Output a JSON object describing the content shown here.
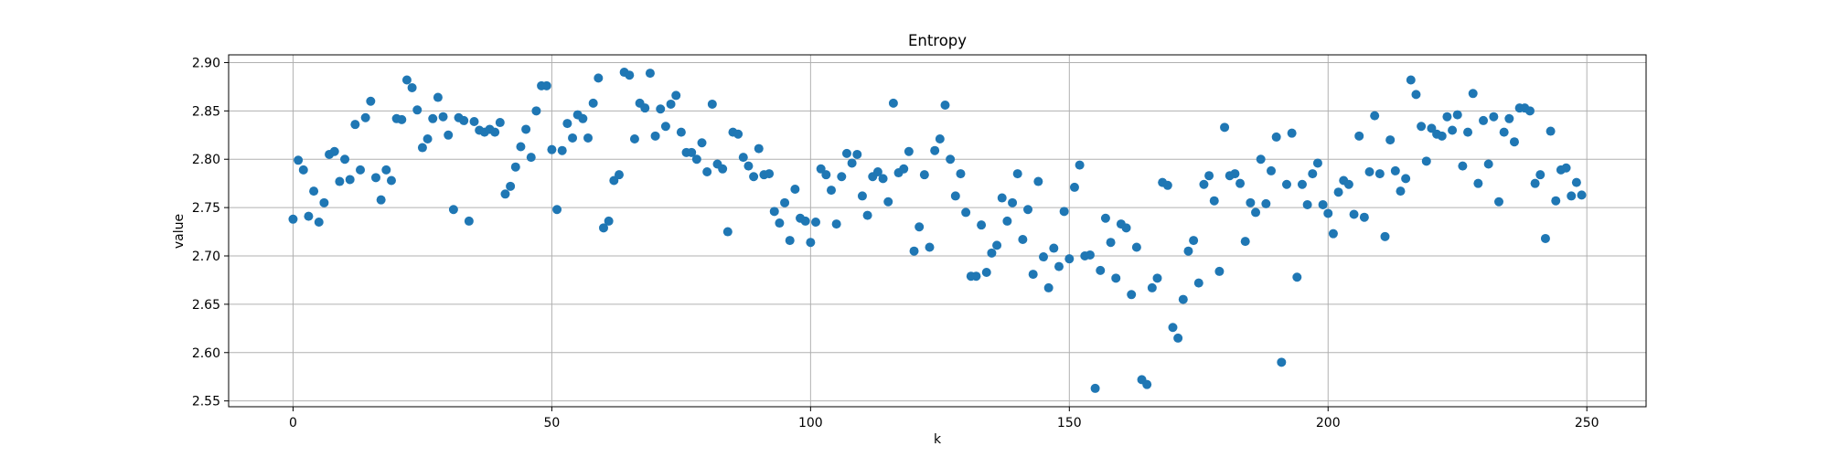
{
  "chart_data": {
    "type": "scatter",
    "title": "Entropy",
    "xlabel": "k",
    "ylabel": "value",
    "xlim": [
      -12.45,
      261.45
    ],
    "ylim": [
      2.544,
      2.908
    ],
    "xticks": [
      0,
      50,
      100,
      150,
      200,
      250
    ],
    "yticks": [
      2.55,
      2.6,
      2.65,
      2.7,
      2.75,
      2.8,
      2.85,
      2.9
    ],
    "ytick_labels": [
      "2.55",
      "2.60",
      "2.65",
      "2.70",
      "2.75",
      "2.80",
      "2.85",
      "2.90"
    ],
    "grid": true,
    "marker_color": "#1f77b4",
    "x": [
      0,
      1,
      2,
      3,
      4,
      5,
      6,
      7,
      8,
      9,
      10,
      11,
      12,
      13,
      14,
      15,
      16,
      17,
      18,
      19,
      20,
      21,
      22,
      23,
      24,
      25,
      26,
      27,
      28,
      29,
      30,
      31,
      32,
      33,
      34,
      35,
      36,
      37,
      38,
      39,
      40,
      41,
      42,
      43,
      44,
      45,
      46,
      47,
      48,
      49,
      50,
      51,
      52,
      53,
      54,
      55,
      56,
      57,
      58,
      59,
      60,
      61,
      62,
      63,
      64,
      65,
      66,
      67,
      68,
      69,
      70,
      71,
      72,
      73,
      74,
      75,
      76,
      77,
      78,
      79,
      80,
      81,
      82,
      83,
      84,
      85,
      86,
      87,
      88,
      89,
      90,
      91,
      92,
      93,
      94,
      95,
      96,
      97,
      98,
      99,
      100,
      101,
      102,
      103,
      104,
      105,
      106,
      107,
      108,
      109,
      110,
      111,
      112,
      113,
      114,
      115,
      116,
      117,
      118,
      119,
      120,
      121,
      122,
      123,
      124,
      125,
      126,
      127,
      128,
      129,
      130,
      131,
      132,
      133,
      134,
      135,
      136,
      137,
      138,
      139,
      140,
      141,
      142,
      143,
      144,
      145,
      146,
      147,
      148,
      149,
      150,
      151,
      152,
      153,
      154,
      155,
      156,
      157,
      158,
      159,
      160,
      161,
      162,
      163,
      164,
      165,
      166,
      167,
      168,
      169,
      170,
      171,
      172,
      173,
      174,
      175,
      176,
      177,
      178,
      179,
      180,
      181,
      182,
      183,
      184,
      185,
      186,
      187,
      188,
      189,
      190,
      191,
      192,
      193,
      194,
      195,
      196,
      197,
      198,
      199,
      200,
      201,
      202,
      203,
      204,
      205,
      206,
      207,
      208,
      209,
      210,
      211,
      212,
      213,
      214,
      215,
      216,
      217,
      218,
      219,
      220,
      221,
      222,
      223,
      224,
      225,
      226,
      227,
      228,
      229,
      230,
      231,
      232,
      233,
      234,
      235,
      236,
      237,
      238,
      239,
      240,
      241,
      242,
      243,
      244,
      245,
      246,
      247,
      248,
      249
    ],
    "y": [
      2.738,
      2.799,
      2.789,
      2.741,
      2.767,
      2.735,
      2.755,
      2.805,
      2.808,
      2.777,
      2.8,
      2.779,
      2.836,
      2.789,
      2.843,
      2.86,
      2.781,
      2.758,
      2.789,
      2.778,
      2.842,
      2.841,
      2.882,
      2.874,
      2.851,
      2.812,
      2.821,
      2.842,
      2.864,
      2.844,
      2.825,
      2.748,
      2.843,
      2.84,
      2.736,
      2.839,
      2.83,
      2.828,
      2.831,
      2.828,
      2.838,
      2.764,
      2.772,
      2.792,
      2.813,
      2.831,
      2.802,
      2.85,
      2.876,
      2.876,
      2.81,
      2.748,
      2.809,
      2.837,
      2.822,
      2.846,
      2.842,
      2.822,
      2.858,
      2.884,
      2.729,
      2.736,
      2.778,
      2.784,
      2.89,
      2.887,
      2.821,
      2.858,
      2.853,
      2.889,
      2.824,
      2.852,
      2.834,
      2.857,
      2.866,
      2.828,
      2.807,
      2.807,
      2.8,
      2.817,
      2.787,
      2.857,
      2.795,
      2.79,
      2.725,
      2.828,
      2.826,
      2.802,
      2.793,
      2.782,
      2.811,
      2.784,
      2.785,
      2.746,
      2.734,
      2.755,
      2.716,
      2.769,
      2.739,
      2.736,
      2.714,
      2.735,
      2.79,
      2.784,
      2.768,
      2.733,
      2.782,
      2.806,
      2.796,
      2.805,
      2.762,
      2.742,
      2.782,
      2.787,
      2.78,
      2.756,
      2.858,
      2.786,
      2.79,
      2.808,
      2.705,
      2.73,
      2.784,
      2.709,
      2.809,
      2.821,
      2.856,
      2.8,
      2.762,
      2.785,
      2.745,
      2.679,
      2.679,
      2.732,
      2.683,
      2.703,
      2.711,
      2.76,
      2.736,
      2.755,
      2.785,
      2.717,
      2.748,
      2.681,
      2.777,
      2.699,
      2.667,
      2.708,
      2.689,
      2.746,
      2.697,
      2.771,
      2.794,
      2.7,
      2.701,
      2.563,
      2.685,
      2.739,
      2.714,
      2.677,
      2.733,
      2.729,
      2.66,
      2.709,
      2.572,
      2.567,
      2.667,
      2.677,
      2.776,
      2.773,
      2.626,
      2.615,
      2.655,
      2.705,
      2.716,
      2.672,
      2.774,
      2.783,
      2.757,
      2.684,
      2.833,
      2.783,
      2.785,
      2.775,
      2.715,
      2.755,
      2.745,
      2.8,
      2.754,
      2.788,
      2.823,
      2.59,
      2.774,
      2.827,
      2.678,
      2.774,
      2.753,
      2.785,
      2.796,
      2.753,
      2.744,
      2.723,
      2.766,
      2.778,
      2.774,
      2.743,
      2.824,
      2.74,
      2.787,
      2.845,
      2.785,
      2.72,
      2.82,
      2.788,
      2.767,
      2.78,
      2.882,
      2.867,
      2.834,
      2.798,
      2.832,
      2.826,
      2.824,
      2.844,
      2.83,
      2.846,
      2.793,
      2.828,
      2.868,
      2.775,
      2.84,
      2.795,
      2.844,
      2.756,
      2.828,
      2.842,
      2.818,
      2.853,
      2.853,
      2.85,
      2.775,
      2.784,
      2.718,
      2.829,
      2.757,
      2.789,
      2.791,
      2.762,
      2.776,
      2.763
    ]
  }
}
